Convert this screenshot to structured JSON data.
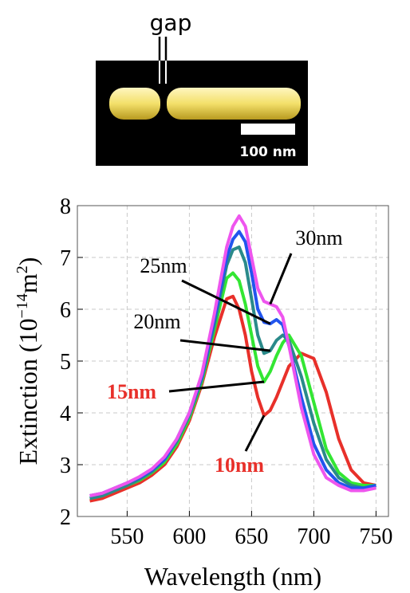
{
  "inset": {
    "label": "gap",
    "scale_bar": "100 nm"
  },
  "chart_data": {
    "type": "line",
    "x_label": "Wavelength (nm)",
    "y_label": {
      "text": "Extinction (10",
      "exp": "−14",
      "unit": "m",
      "unit_exp": "2",
      "close": ")"
    },
    "x": [
      520,
      530,
      540,
      550,
      560,
      570,
      580,
      590,
      600,
      610,
      620,
      630,
      635,
      640,
      645,
      650,
      655,
      660,
      665,
      670,
      675,
      680,
      690,
      700,
      710,
      720,
      730,
      740,
      750
    ],
    "series": [
      {
        "name": "10nm",
        "color": "#e8302a",
        "values": [
          2.3,
          2.35,
          2.45,
          2.55,
          2.65,
          2.8,
          3.0,
          3.35,
          3.85,
          4.55,
          5.45,
          6.2,
          6.25,
          6.0,
          5.5,
          4.8,
          4.3,
          3.95,
          4.05,
          4.3,
          4.6,
          4.9,
          5.15,
          5.05,
          4.4,
          3.5,
          2.9,
          2.65,
          2.6
        ]
      },
      {
        "name": "15nm",
        "color": "#33e633",
        "values": [
          2.35,
          2.4,
          2.5,
          2.6,
          2.7,
          2.85,
          3.05,
          3.4,
          3.9,
          4.6,
          5.6,
          6.6,
          6.7,
          6.55,
          6.1,
          5.5,
          4.9,
          4.6,
          4.8,
          5.1,
          5.35,
          5.5,
          5.1,
          4.2,
          3.3,
          2.85,
          2.65,
          2.6,
          2.6
        ]
      },
      {
        "name": "20nm",
        "color": "#2a8a8a",
        "values": [
          2.35,
          2.4,
          2.5,
          2.6,
          2.72,
          2.87,
          3.1,
          3.45,
          3.95,
          4.65,
          5.7,
          6.85,
          7.15,
          7.2,
          6.9,
          6.2,
          5.5,
          5.15,
          5.2,
          5.4,
          5.5,
          5.4,
          4.7,
          3.8,
          3.1,
          2.75,
          2.6,
          2.55,
          2.6
        ]
      },
      {
        "name": "25nm",
        "color": "#2255ee",
        "values": [
          2.4,
          2.45,
          2.55,
          2.65,
          2.75,
          2.9,
          3.1,
          3.5,
          4.0,
          4.7,
          5.8,
          7.0,
          7.35,
          7.5,
          7.3,
          6.7,
          6.0,
          5.75,
          5.72,
          5.8,
          5.7,
          5.3,
          4.3,
          3.4,
          2.9,
          2.65,
          2.55,
          2.55,
          2.6
        ]
      },
      {
        "name": "30nm",
        "color": "#ee55ee",
        "values": [
          2.4,
          2.45,
          2.55,
          2.65,
          2.77,
          2.92,
          3.15,
          3.5,
          4.0,
          4.75,
          5.9,
          7.2,
          7.6,
          7.8,
          7.6,
          7.0,
          6.4,
          6.15,
          6.1,
          6.05,
          5.85,
          5.3,
          4.1,
          3.2,
          2.75,
          2.6,
          2.5,
          2.5,
          2.55
        ]
      }
    ],
    "xlim": [
      510,
      760
    ],
    "ylim": [
      2,
      8
    ],
    "xticks": [
      550,
      600,
      650,
      700,
      750
    ],
    "yticks": [
      2,
      3,
      4,
      5,
      6,
      7,
      8
    ],
    "grid": true
  }
}
